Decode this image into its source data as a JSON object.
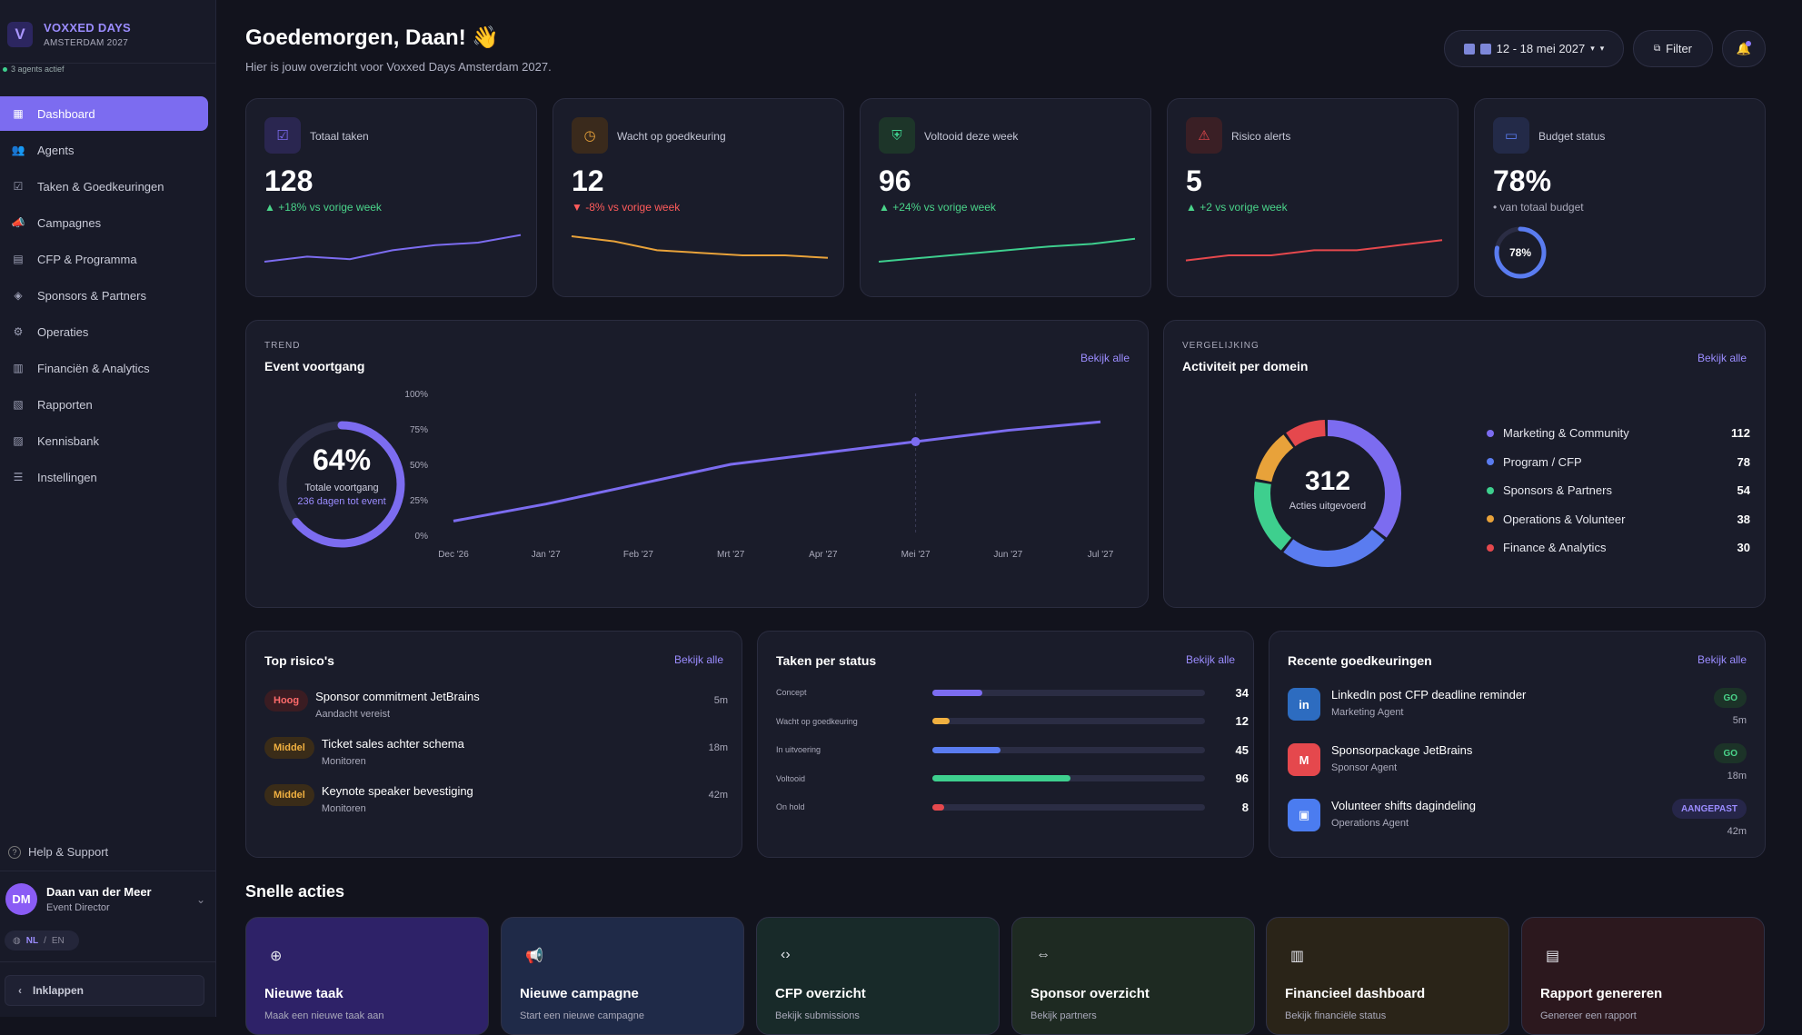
{
  "brand": {
    "title": "VOXXED DAYS",
    "subtitle": "AMSTERDAM 2027",
    "logo": "V"
  },
  "agents_status": "3 agents actief",
  "nav": [
    {
      "label": "Dashboard",
      "icon": "▦"
    },
    {
      "label": "Agents",
      "icon": "👥"
    },
    {
      "label": "Taken & Goedkeuringen",
      "icon": "☑"
    },
    {
      "label": "Campagnes",
      "icon": "📣"
    },
    {
      "label": "CFP & Programma",
      "icon": "▤"
    },
    {
      "label": "Sponsors & Partners",
      "icon": "◈"
    },
    {
      "label": "Operaties",
      "icon": "⚙"
    },
    {
      "label": "Financiën & Analytics",
      "icon": "▥"
    },
    {
      "label": "Rapporten",
      "icon": "▧"
    },
    {
      "label": "Kennisbank",
      "icon": "▨"
    },
    {
      "label": "Instellingen",
      "icon": "☰"
    }
  ],
  "help": "Help & Support",
  "user": {
    "initials": "DM",
    "name": "Daan van der Meer",
    "role": "Event Director"
  },
  "lang": {
    "nl": "NL",
    "sep": "/",
    "en": "EN"
  },
  "collapse": "Inklappen",
  "header": {
    "greeting": "Goedemorgen, Daan! 👋",
    "subtitle": "Hier is jouw overzicht voor Voxxed Days Amsterdam 2027.",
    "date_range": "12 - 18 mei 2027",
    "filter": "Filter"
  },
  "kpis": [
    {
      "label": "Totaal taken",
      "value": "128",
      "delta": "▲ +18% vs vorige week",
      "trend": "up",
      "color": "#7c6cf0",
      "icon_bg": "#2a2650",
      "icon": "☑",
      "spark": [
        30,
        38,
        34,
        48,
        56,
        60,
        72
      ]
    },
    {
      "label": "Wacht op goedkeuring",
      "value": "12",
      "delta": "▼ -8% vs vorige week",
      "trend": "down",
      "color": "#e8a23a",
      "icon_bg": "#3a2a1c",
      "icon": "◷",
      "spark": [
        70,
        62,
        48,
        44,
        40,
        40,
        36
      ]
    },
    {
      "label": "Voltooid deze week",
      "value": "96",
      "delta": "▲ +24% vs vorige week",
      "trend": "up",
      "color": "#3ecf8e",
      "icon_bg": "#1d3529",
      "icon": "⛨",
      "spark": [
        30,
        36,
        42,
        48,
        54,
        58,
        66
      ]
    },
    {
      "label": "Risico alerts",
      "value": "5",
      "delta": "▲ +2 vs vorige week",
      "trend": "up",
      "color": "#e5484d",
      "icon_bg": "#3a1f25",
      "icon": "⚠",
      "spark": [
        32,
        40,
        40,
        48,
        48,
        56,
        64
      ]
    },
    {
      "label": "Budget status",
      "value": "78%",
      "delta": "• van totaal budget",
      "trend": "muted",
      "color": "#5a7cf0",
      "icon_bg": "#232a48",
      "icon": "▭",
      "gauge": 78,
      "gauge_label": "78%"
    }
  ],
  "progress_card": {
    "eyebrow": "TREND",
    "title": "Event voortgang",
    "link": "Bekijk alle",
    "donut_value": "64%",
    "donut_pct": 64,
    "donut_label": "Totale voortgang",
    "donut_sub": "236 dagen tot event"
  },
  "chart_data": {
    "type": "line",
    "x": [
      "Dec '26",
      "Jan '27",
      "Feb '27",
      "Mrt '27",
      "Apr '27",
      "Mei '27",
      "Jun '27",
      "Jul '27"
    ],
    "values": [
      10,
      22,
      36,
      50,
      58,
      66,
      74,
      80
    ],
    "highlight_index": 5,
    "y_ticks": [
      "0%",
      "25%",
      "50%",
      "75%",
      "100%"
    ],
    "ylim": [
      0,
      100
    ],
    "color": "#7c6cf0"
  },
  "domain_card": {
    "eyebrow": "VERGELIJKING",
    "title": "Activiteit per domein",
    "link": "Bekijk alle",
    "total": "312",
    "total_label": "Acties uitgevoerd",
    "items": [
      {
        "label": "Marketing & Community",
        "value": 112,
        "value_text": "112",
        "color": "#7c6cf0"
      },
      {
        "label": "Program / CFP",
        "value": 78,
        "value_text": "78",
        "color": "#5a7cf0"
      },
      {
        "label": "Sponsors & Partners",
        "value": 54,
        "value_text": "54",
        "color": "#3ecf8e"
      },
      {
        "label": "Operations & Volunteer",
        "value": 38,
        "value_text": "38",
        "color": "#e8a23a"
      },
      {
        "label": "Finance & Analytics",
        "value": 30,
        "value_text": "30",
        "color": "#e5484d"
      }
    ]
  },
  "risks": {
    "title": "Top risico's",
    "link": "Bekijk alle",
    "items": [
      {
        "badge": "Hoog",
        "badge_color": "#ff6b6b",
        "badge_bg": "#3a1c22",
        "title": "Sponsor commitment JetBrains",
        "sub": "Aandacht vereist",
        "time": "5m"
      },
      {
        "badge": "Middel",
        "badge_color": "#f0b040",
        "badge_bg": "#3a2c18",
        "title": "Ticket sales achter schema",
        "sub": "Monitoren",
        "time": "18m"
      },
      {
        "badge": "Middel",
        "badge_color": "#f0b040",
        "badge_bg": "#3a2c18",
        "title": "Keynote speaker bevestiging",
        "sub": "Monitoren",
        "time": "42m"
      }
    ]
  },
  "statuses": {
    "title": "Taken per status",
    "link": "Bekijk alle",
    "items": [
      {
        "label": "Concept",
        "value": "34",
        "fraction": 0.17,
        "color": "#7c6cf0"
      },
      {
        "label": "Wacht op goedkeuring",
        "value": "12",
        "fraction": 0.06,
        "color": "#f0b040"
      },
      {
        "label": "In uitvoering",
        "value": "45",
        "fraction": 0.23,
        "color": "#5a7cf0"
      },
      {
        "label": "Voltooid",
        "value": "96",
        "fraction": 0.47,
        "color": "#3ecf8e"
      },
      {
        "label": "On hold",
        "value": "8",
        "fraction": 0.04,
        "color": "#e5484d"
      }
    ]
  },
  "approvals": {
    "title": "Recente goedkeuringen",
    "link": "Bekijk alle",
    "items": [
      {
        "icon": "in",
        "icon_bg": "#2d6cc0",
        "title": "LinkedIn post CFP deadline reminder",
        "sub": "Marketing Agent",
        "badge": "GO",
        "badge_color": "#4ad48a",
        "badge_bg": "#1c3328",
        "time": "5m"
      },
      {
        "icon": "M",
        "icon_bg": "#e5484d",
        "title": "Sponsorpackage JetBrains",
        "sub": "Sponsor Agent",
        "badge": "GO",
        "badge_color": "#4ad48a",
        "badge_bg": "#1c3328",
        "time": "18m"
      },
      {
        "icon": "▣",
        "icon_bg": "#4b7cf0",
        "title": "Volunteer shifts dagindeling",
        "sub": "Operations Agent",
        "badge": "AANGEPAST",
        "badge_color": "#9b8cff",
        "badge_bg": "#262649",
        "time": "42m"
      }
    ]
  },
  "quick_actions": {
    "title": "Snelle acties",
    "items": [
      {
        "label": "Nieuwe taak",
        "sub": "Maak een nieuwe taak aan",
        "icon": "⊕",
        "bg": "#2e2268"
      },
      {
        "label": "Nieuwe campagne",
        "sub": "Start een nieuwe campagne",
        "icon": "📢",
        "bg": "#1f2a48"
      },
      {
        "label": "CFP overzicht",
        "sub": "Bekijk submissions",
        "icon": "‹›",
        "bg": "#182a29"
      },
      {
        "label": "Sponsor overzicht",
        "sub": "Bekijk partners",
        "icon": "⇔",
        "bg": "#1e2a22"
      },
      {
        "label": "Financieel dashboard",
        "sub": "Bekijk financiële status",
        "icon": "▥",
        "bg": "#2a2418"
      },
      {
        "label": "Rapport genereren",
        "sub": "Genereer een rapport",
        "icon": "▤",
        "bg": "#2c181e"
      }
    ]
  }
}
